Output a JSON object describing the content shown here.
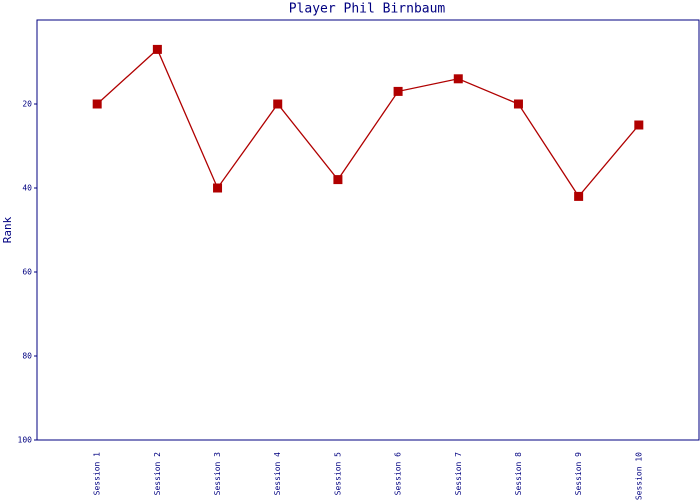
{
  "chart_data": {
    "type": "line",
    "title": "Player Phil Birnbaum",
    "y_label": "Rank",
    "categories": [
      "Session 1",
      "Session 2",
      "Session 3",
      "Session 4",
      "Session 5",
      "Session 6",
      "Session 7",
      "Session 8",
      "Session 9",
      "Session 10"
    ],
    "series": [
      {
        "name": "Rank",
        "color": "#b00000",
        "values": [
          20,
          7,
          40,
          20,
          38,
          17,
          14,
          20,
          42,
          25
        ]
      }
    ],
    "ylim": [
      100,
      0
    ],
    "yticks": [
      20,
      40,
      60,
      80,
      100
    ],
    "grid": false
  }
}
